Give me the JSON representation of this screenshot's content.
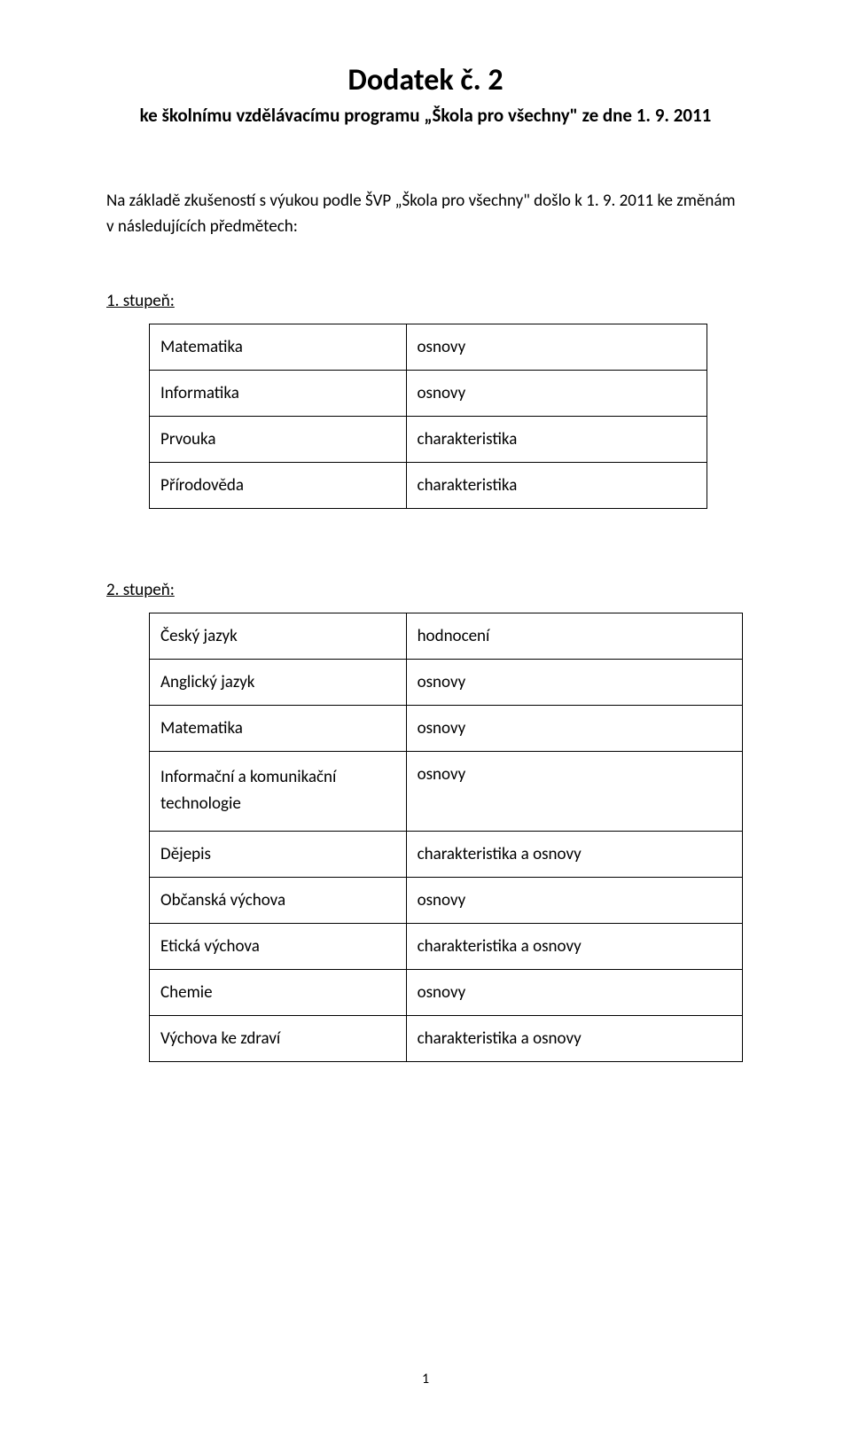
{
  "title": "Dodatek č. 2",
  "subtitle": "ke školnímu vzdělávacímu programu „Škola pro všechny\" ze dne 1. 9. 2011",
  "intro": "Na základě zkušeností s výukou podle ŠVP „Škola pro všechny\" došlo k 1. 9. 2011 ke změnám v následujících předmětech:",
  "section1": {
    "label": "1. stupeň:",
    "rows": [
      {
        "subject": "Matematika",
        "note": "osnovy"
      },
      {
        "subject": "Informatika",
        "note": "osnovy"
      },
      {
        "subject": "Prvouka",
        "note": "charakteristika"
      },
      {
        "subject": "Přírodověda",
        "note": "charakteristika"
      }
    ]
  },
  "section2": {
    "label": "2. stupeň:",
    "rows": [
      {
        "subject": "Český jazyk",
        "note": "hodnocení"
      },
      {
        "subject": "Anglický jazyk",
        "note": "osnovy"
      },
      {
        "subject": "Matematika",
        "note": "osnovy"
      },
      {
        "subject": "Informační a komunikační technologie",
        "note": "osnovy"
      },
      {
        "subject": "Dějepis",
        "note": "charakteristika a osnovy"
      },
      {
        "subject": "Občanská výchova",
        "note": "osnovy"
      },
      {
        "subject": "Etická výchova",
        "note": "charakteristika a osnovy"
      },
      {
        "subject": "Chemie",
        "note": "osnovy"
      },
      {
        "subject": "Výchova ke zdraví",
        "note": "charakteristika a osnovy"
      }
    ]
  },
  "page_number": "1"
}
